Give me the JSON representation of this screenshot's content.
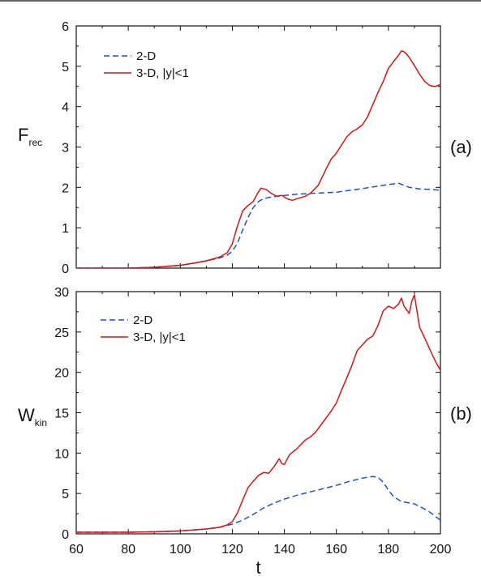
{
  "chart_data": [
    {
      "type": "line",
      "panel_label": "(a)",
      "ylabel_main": "F",
      "ylabel_sub": "rec",
      "xlabel": "",
      "xlim": [
        60,
        200
      ],
      "ylim": [
        0,
        6
      ],
      "xticks": [
        60,
        80,
        100,
        120,
        140,
        160,
        180,
        200
      ],
      "yticks": [
        0,
        1,
        2,
        3,
        4,
        5,
        6
      ],
      "legend_position": "top-left",
      "series": [
        {
          "name": "2-D",
          "color": "#1f4fd6",
          "style": "dashed",
          "x": [
            60,
            80,
            90,
            100,
            105,
            110,
            115,
            118,
            120,
            122,
            124,
            126,
            128,
            130,
            132,
            134,
            136,
            140,
            145,
            150,
            160,
            170,
            175,
            180,
            184,
            188,
            192,
            196,
            200
          ],
          "y": [
            0.0,
            0.0,
            0.02,
            0.07,
            0.12,
            0.18,
            0.25,
            0.32,
            0.42,
            0.62,
            0.95,
            1.25,
            1.5,
            1.65,
            1.72,
            1.75,
            1.77,
            1.8,
            1.83,
            1.85,
            1.88,
            1.97,
            2.02,
            2.07,
            2.1,
            2.0,
            1.96,
            1.95,
            1.93
          ]
        },
        {
          "name": "3-D, |y|<1",
          "color": "#e01010",
          "style": "solid",
          "x": [
            60,
            80,
            90,
            100,
            105,
            110,
            115,
            118,
            120,
            122,
            124,
            126,
            128,
            130,
            131,
            133,
            135,
            137,
            139,
            141,
            143,
            145,
            148,
            150,
            153,
            156,
            158,
            160,
            162,
            164,
            166,
            168,
            170,
            172,
            174,
            176,
            178,
            180,
            182,
            184,
            185,
            186,
            187,
            188,
            190,
            192,
            194,
            196,
            198,
            200
          ],
          "y": [
            0.0,
            0.0,
            0.02,
            0.07,
            0.12,
            0.18,
            0.27,
            0.38,
            0.6,
            1.05,
            1.42,
            1.55,
            1.65,
            1.88,
            1.98,
            1.95,
            1.85,
            1.78,
            1.8,
            1.72,
            1.68,
            1.72,
            1.78,
            1.85,
            2.05,
            2.45,
            2.7,
            2.85,
            3.05,
            3.25,
            3.38,
            3.45,
            3.55,
            3.75,
            4.05,
            4.35,
            4.62,
            4.95,
            5.12,
            5.28,
            5.38,
            5.36,
            5.3,
            5.22,
            5.02,
            4.8,
            4.62,
            4.52,
            4.5,
            4.55
          ]
        }
      ]
    },
    {
      "type": "line",
      "panel_label": "(b)",
      "ylabel_main": "W",
      "ylabel_sub": "kin",
      "xlabel": "t",
      "xlim": [
        60,
        200
      ],
      "ylim": [
        0,
        30
      ],
      "xticks": [
        60,
        80,
        100,
        120,
        140,
        160,
        180,
        200
      ],
      "yticks": [
        0,
        5,
        10,
        15,
        20,
        25,
        30
      ],
      "legend_position": "top-left",
      "series": [
        {
          "name": "2-D",
          "color": "#1f4fd6",
          "style": "dashed",
          "x": [
            60,
            80,
            90,
            100,
            110,
            115,
            120,
            124,
            128,
            132,
            136,
            140,
            145,
            150,
            155,
            160,
            165,
            170,
            174,
            176,
            178,
            180,
            182,
            185,
            190,
            195,
            200
          ],
          "y": [
            0.2,
            0.2,
            0.25,
            0.35,
            0.6,
            0.8,
            1.2,
            1.7,
            2.4,
            3.2,
            3.8,
            4.3,
            4.8,
            5.2,
            5.6,
            6.0,
            6.5,
            6.9,
            7.1,
            7.0,
            6.4,
            5.4,
            4.6,
            4.0,
            3.7,
            2.9,
            1.7
          ]
        },
        {
          "name": "3-D, |y|<1",
          "color": "#e01010",
          "style": "solid",
          "x": [
            60,
            80,
            90,
            100,
            110,
            115,
            118,
            120,
            122,
            124,
            126,
            128,
            130,
            132,
            134,
            136,
            138,
            139,
            140,
            142,
            145,
            148,
            150,
            152,
            155,
            158,
            160,
            162,
            164,
            166,
            168,
            170,
            172,
            174,
            176,
            178,
            180,
            182,
            184,
            185,
            186,
            188,
            189,
            190,
            192,
            194,
            196,
            198,
            200
          ],
          "y": [
            0.2,
            0.2,
            0.25,
            0.35,
            0.6,
            0.8,
            1.1,
            1.5,
            2.6,
            4.2,
            5.7,
            6.5,
            7.2,
            7.6,
            7.5,
            8.3,
            9.3,
            8.7,
            8.6,
            9.8,
            10.6,
            11.6,
            12.0,
            12.6,
            13.9,
            15.2,
            16.2,
            17.8,
            19.3,
            20.9,
            22.7,
            23.4,
            24.1,
            24.5,
            25.8,
            27.6,
            28.2,
            27.9,
            28.5,
            29.2,
            28.2,
            27.3,
            28.8,
            29.6,
            25.6,
            24.2,
            22.8,
            21.4,
            20.3
          ]
        }
      ]
    }
  ]
}
